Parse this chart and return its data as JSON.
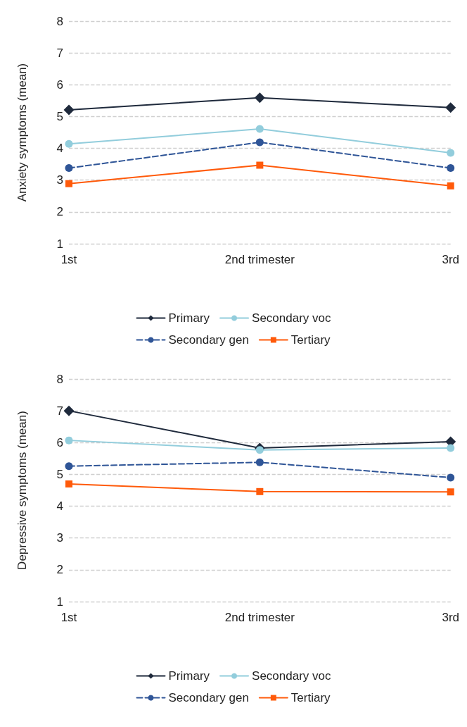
{
  "chart_data": [
    {
      "type": "line",
      "ylabel": "Anxiety symptoms (mean)",
      "categories": [
        "1st",
        "2nd trimester",
        "3rd"
      ],
      "ylim": [
        1,
        8
      ],
      "yticks": [
        1,
        2,
        3,
        4,
        5,
        6,
        7,
        8
      ],
      "grid": "y",
      "legend": "bottom",
      "series": [
        {
          "name": "Primary",
          "color": "#1f2a3c",
          "marker": "diamond",
          "line_style": "solid",
          "values": [
            5.21,
            5.59,
            5.28
          ]
        },
        {
          "name": "Secondary voc",
          "color": "#92cddc",
          "marker": "circle",
          "line_style": "solid",
          "values": [
            4.14,
            4.61,
            3.86
          ]
        },
        {
          "name": "Secondary gen",
          "color": "#2f5597",
          "marker": "circle",
          "line_style": "dashed",
          "values": [
            3.38,
            4.19,
            3.38
          ]
        },
        {
          "name": "Tertiary",
          "color": "#ff5a0a",
          "marker": "square",
          "line_style": "solid",
          "values": [
            2.89,
            3.47,
            2.82
          ]
        }
      ]
    },
    {
      "type": "line",
      "ylabel": "Depressive symptoms (mean)",
      "categories": [
        "1st",
        "2nd trimester",
        "3rd"
      ],
      "ylim": [
        1,
        8
      ],
      "yticks": [
        1,
        2,
        3,
        4,
        5,
        6,
        7,
        8
      ],
      "grid": "y",
      "legend": "bottom",
      "series": [
        {
          "name": "Primary",
          "color": "#1f2a3c",
          "marker": "diamond",
          "line_style": "solid",
          "values": [
            7.0,
            5.83,
            6.03
          ]
        },
        {
          "name": "Secondary voc",
          "color": "#92cddc",
          "marker": "circle",
          "line_style": "solid",
          "values": [
            6.07,
            5.77,
            5.83
          ]
        },
        {
          "name": "Secondary gen",
          "color": "#2f5597",
          "marker": "circle",
          "line_style": "dashed",
          "values": [
            5.26,
            5.38,
            4.9
          ]
        },
        {
          "name": "Tertiary",
          "color": "#ff5a0a",
          "marker": "square",
          "line_style": "solid",
          "values": [
            4.7,
            4.46,
            4.45
          ]
        }
      ]
    }
  ]
}
